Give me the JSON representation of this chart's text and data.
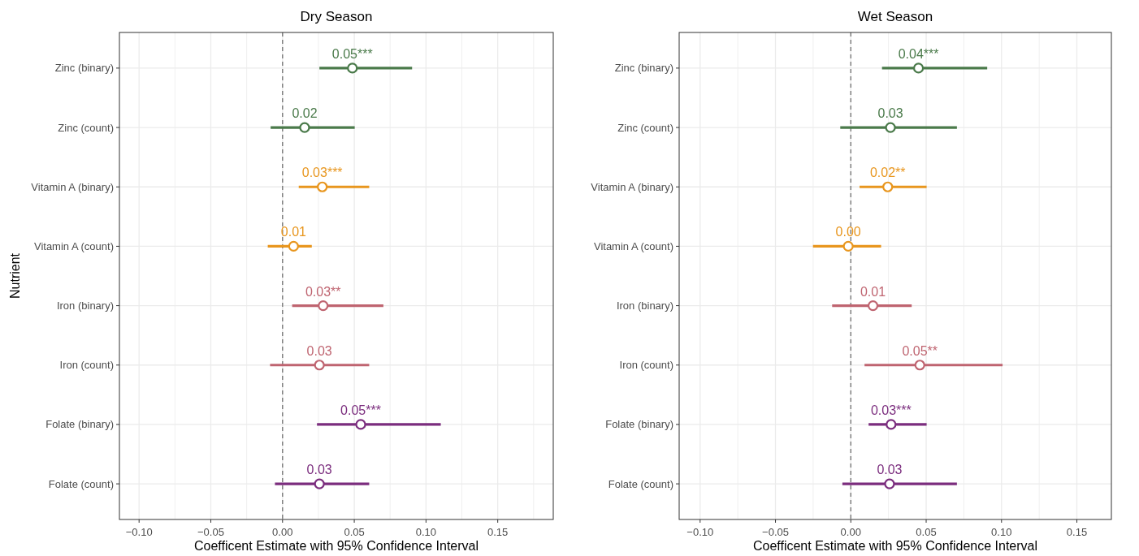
{
  "chart_data": [
    {
      "type": "scatter",
      "orientation": "horizontal",
      "title": "Dry Season",
      "xlabel": "Coefficent Estimate with 95% Confidence Interval",
      "ylabel": "Nutrient",
      "marker": "circle",
      "grid": true,
      "categories": [
        "Zinc (binary)",
        "Zinc (count)",
        "Vitamin A (binary)",
        "Vitamin A (count)",
        "Iron (binary)",
        "Iron (count)",
        "Folate (binary)",
        "Folate (count)"
      ],
      "values": [
        0.0487,
        0.0154,
        0.0277,
        0.0077,
        0.0283,
        0.0257,
        0.0545,
        0.0257
      ],
      "errors": [
        [
          0.0257,
          0.0903
        ],
        [
          -0.0083,
          0.0503
        ],
        [
          0.0113,
          0.0604
        ],
        [
          -0.0103,
          0.0204
        ],
        [
          0.0067,
          0.0703
        ],
        [
          -0.0087,
          0.0604
        ],
        [
          0.024,
          0.1103
        ],
        [
          -0.0053,
          0.0604
        ]
      ],
      "value_labels": [
        "0.05***",
        "0.02",
        "0.03***",
        "0.01",
        "0.03**",
        "0.03",
        "0.05***",
        "0.03"
      ],
      "colors": [
        "#4a7a4a",
        "#4a7a4a",
        "#e8961e",
        "#e8961e",
        "#bf6470",
        "#bf6470",
        "#7b2d7e",
        "#7b2d7e"
      ],
      "xlim": [
        -0.1137,
        0.1887
      ],
      "xticks": [
        {
          "value": -0.1,
          "label": "−0.10"
        },
        {
          "value": -0.075,
          "label": null
        },
        {
          "value": -0.05,
          "label": "−0.05"
        },
        {
          "value": -0.025,
          "label": null
        },
        {
          "value": 0,
          "label": "0.00"
        },
        {
          "value": 0.025,
          "label": null
        },
        {
          "value": 0.05,
          "label": "0.05"
        },
        {
          "value": 0.075,
          "label": null
        },
        {
          "value": 0.1,
          "label": "0.10"
        },
        {
          "value": 0.125,
          "label": null
        },
        {
          "value": 0.15,
          "label": "0.15"
        },
        {
          "value": 0.175,
          "label": null
        }
      ],
      "ref_lines": [
        {
          "axis": "x",
          "value": 0,
          "color": "#808080",
          "line_style": "dashed"
        }
      ]
    },
    {
      "type": "scatter",
      "orientation": "horizontal",
      "title": "Wet Season",
      "xlabel": "Coefficent Estimate with 95% Confidence Interval",
      "marker": "circle",
      "grid": true,
      "categories": [
        "Zinc (binary)",
        "Zinc (count)",
        "Vitamin A (binary)",
        "Vitamin A (count)",
        "Iron (binary)",
        "Iron (count)",
        "Folate (binary)",
        "Folate (count)"
      ],
      "values": [
        0.0449,
        0.0263,
        0.0245,
        -0.0017,
        0.0147,
        0.0458,
        0.0267,
        0.0257
      ],
      "errors": [
        [
          0.0207,
          0.0905
        ],
        [
          -0.007,
          0.0704
        ],
        [
          0.0058,
          0.0503
        ],
        [
          -0.0251,
          0.0201
        ],
        [
          -0.0124,
          0.0404
        ],
        [
          0.0091,
          0.1007
        ],
        [
          0.0118,
          0.0503
        ],
        [
          -0.0056,
          0.0704
        ]
      ],
      "value_labels": [
        "0.04***",
        "0.03",
        "0.02**",
        "0.00",
        "0.01",
        "0.05**",
        "0.03***",
        "0.03"
      ],
      "colors": [
        "#4a7a4a",
        "#4a7a4a",
        "#e8961e",
        "#e8961e",
        "#bf6470",
        "#bf6470",
        "#7b2d7e",
        "#7b2d7e"
      ],
      "xlim": [
        -0.1139,
        0.1729
      ],
      "xticks": [
        {
          "value": -0.1,
          "label": "−0.10"
        },
        {
          "value": -0.075,
          "label": null
        },
        {
          "value": -0.05,
          "label": "−0.05"
        },
        {
          "value": -0.025,
          "label": null
        },
        {
          "value": 0,
          "label": "0.00"
        },
        {
          "value": 0.025,
          "label": null
        },
        {
          "value": 0.05,
          "label": "0.05"
        },
        {
          "value": 0.075,
          "label": null
        },
        {
          "value": 0.1,
          "label": "0.10"
        },
        {
          "value": 0.125,
          "label": null
        },
        {
          "value": 0.15,
          "label": "0.15"
        }
      ],
      "ref_lines": [
        {
          "axis": "x",
          "value": 0,
          "color": "#808080",
          "line_style": "dashed"
        }
      ]
    }
  ]
}
